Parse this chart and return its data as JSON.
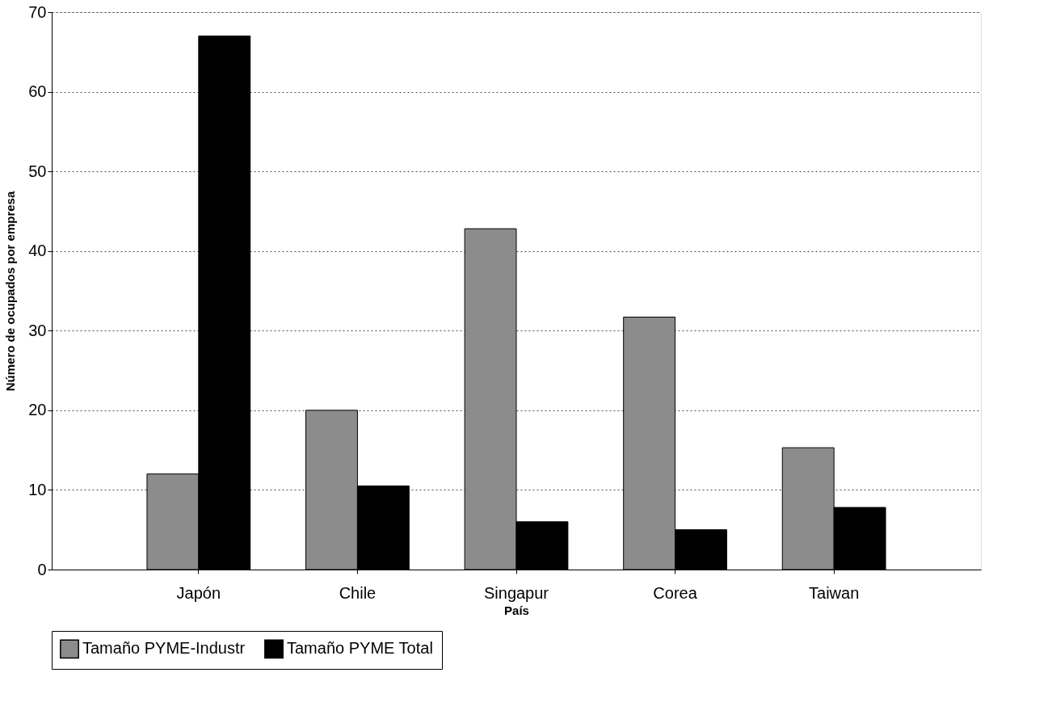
{
  "chart_data": {
    "type": "bar",
    "xlabel": "País",
    "ylabel": "Número de ocupados por empresa",
    "categories": [
      "Japón",
      "Chile",
      "Singapur",
      "Corea",
      "Taiwan"
    ],
    "series": [
      {
        "name": "Tamaño PYME-Industr",
        "color": "#8c8c8c",
        "values": [
          12,
          20,
          42.8,
          31.7,
          15.3
        ]
      },
      {
        "name": "Tamaño PYME Total",
        "color": "#000000",
        "values": [
          67,
          10.5,
          6,
          5,
          7.8
        ]
      }
    ],
    "ylim": [
      0,
      70
    ],
    "yticks": [
      0,
      10,
      20,
      30,
      40,
      50,
      60,
      70
    ],
    "grid": "y",
    "legend": "bottom"
  }
}
